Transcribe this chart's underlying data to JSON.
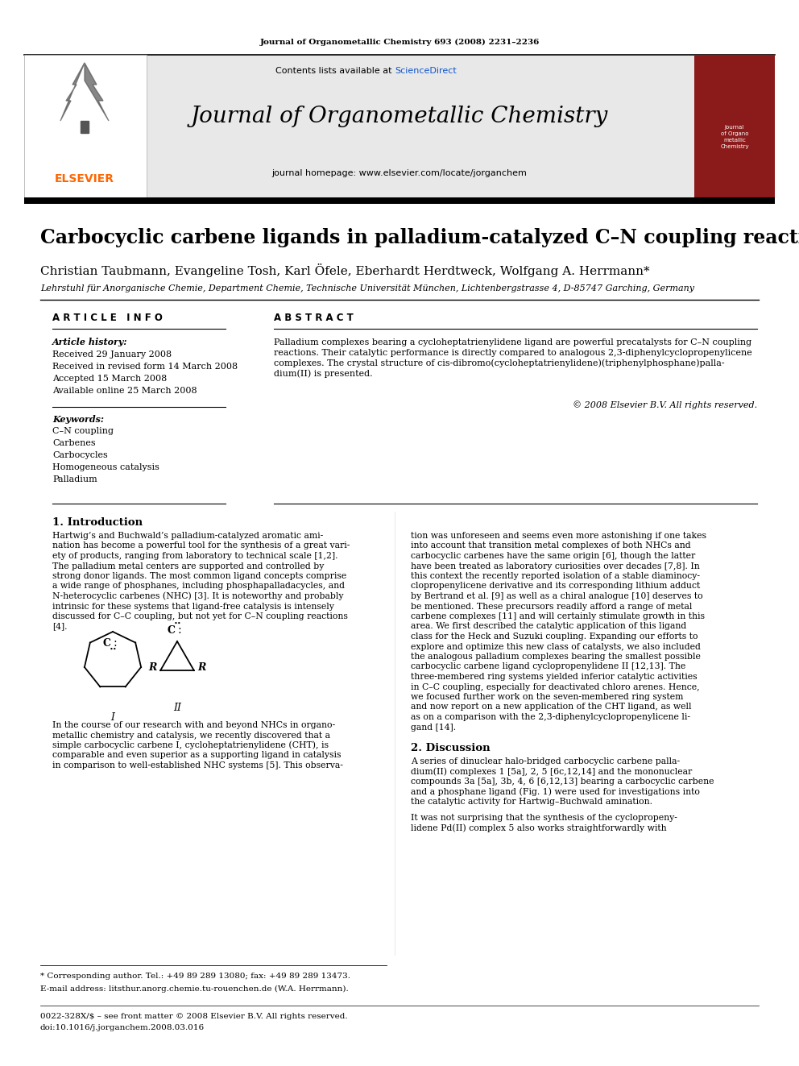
{
  "fig_width": 9.92,
  "fig_height": 13.23,
  "bg_color": "#ffffff",
  "journal_ref": "Journal of Organometallic Chemistry 693 (2008) 2231–2236",
  "header_bg": "#e8e8e8",
  "header_title": "Journal of Organometallic Chemistry",
  "header_contents": "Contents lists available at",
  "sciencedirect": "ScienceDirect",
  "sciencedirect_color": "#1155cc",
  "homepage": "journal homepage: www.elsevier.com/locate/jorganchem",
  "elsevier_color": "#FF6600",
  "elsevier_text": "ELSEVIER",
  "article_title": "Carbocyclic carbene ligands in palladium-catalyzed C–N coupling reactions",
  "authors": "Christian Taubmann, Evangeline Tosh, Karl Öfele, Eberhardt Herdtweck, Wolfgang A. Herrmann*",
  "affiliation": "Lehrstuhl für Anorganische Chemie, Department Chemie, Technische Universität München, Lichtenbergstrasse 4, D-85747 Garching, Germany",
  "article_info_header": "A R T I C L E   I N F O",
  "abstract_header": "A B S T R A C T",
  "article_history_label": "Article history:",
  "received": "Received 29 January 2008",
  "received_revised": "Received in revised form 14 March 2008",
  "accepted": "Accepted 15 March 2008",
  "available": "Available online 25 March 2008",
  "keywords_label": "Keywords:",
  "keywords": [
    "C–N coupling",
    "Carbenes",
    "Carbocycles",
    "Homogeneous catalysis",
    "Palladium"
  ],
  "abstract_lines": [
    "Palladium complexes bearing a cycloheptatrienylidene ligand are powerful precatalysts for C–N coupling",
    "reactions. Their catalytic performance is directly compared to analogous 2,3-diphenylcyclopropenylicene",
    "complexes. The crystal structure of cis-dibromo(cycloheptatrienylidene)(triphenylphosphane)palla-",
    "dium(II) is presented."
  ],
  "copyright": "© 2008 Elsevier B.V. All rights reserved.",
  "intro_title": "1. Introduction",
  "intro_lines_left": [
    "Hartwig’s and Buchwald’s palladium-catalyzed aromatic ami-",
    "nation has become a powerful tool for the synthesis of a great vari-",
    "ety of products, ranging from laboratory to technical scale [1,2].",
    "The palladium metal centers are supported and controlled by",
    "strong donor ligands. The most common ligand concepts comprise",
    "a wide range of phosphanes, including phosphapalladacycles, and",
    "N-heterocyclic carbenes (NHC) [3]. It is noteworthy and probably",
    "intrinsic for these systems that ligand-free catalysis is intensely",
    "discussed for C–C coupling, but not yet for C–N coupling reactions",
    "[4]."
  ],
  "intro_lines_left2": [
    "In the course of our research with and beyond NHCs in organo-",
    "metallic chemistry and catalysis, we recently discovered that a",
    "simple carbocyclic carbene I, cycloheptatrienylidene (CHT), is",
    "comparable and even superior as a supporting ligand in catalysis",
    "in comparison to well-established NHC systems [5]. This observa-"
  ],
  "intro_lines_right": [
    "tion was unforeseen and seems even more astonishing if one takes",
    "into account that transition metal complexes of both NHCs and",
    "carbocyclic carbenes have the same origin [6], though the latter",
    "have been treated as laboratory curiosities over decades [7,8]. In",
    "this context the recently reported isolation of a stable diaminocy-",
    "clopropenylicene derivative and its corresponding lithium adduct",
    "by Bertrand et al. [9] as well as a chiral analogue [10] deserves to",
    "be mentioned. These precursors readily afford a range of metal",
    "carbene complexes [11] and will certainly stimulate growth in this",
    "area. We first described the catalytic application of this ligand",
    "class for the Heck and Suzuki coupling. Expanding our efforts to",
    "explore and optimize this new class of catalysts, we also included",
    "the analogous palladium complexes bearing the smallest possible",
    "carbocyclic carbene ligand cyclopropenylidene II [12,13]. The",
    "three-membered ring systems yielded inferior catalytic activities",
    "in C–C coupling, especially for deactivated chloro arenes. Hence,",
    "we focused further work on the seven-membered ring system",
    "and now report on a new application of the CHT ligand, as well",
    "as on a comparison with the 2,3-diphenylcyclopropenylicene li-",
    "gand [14]."
  ],
  "discussion_title": "2. Discussion",
  "discussion_lines": [
    "A series of dinuclear halo-bridged carbocyclic carbene palla-",
    "dium(II) complexes 1 [5a], 2, 5 [6c,12,14] and the mononuclear",
    "compounds 3a [5a], 3b, 4, 6 [6,12,13] bearing a carbocyclic carbene",
    "and a phosphane ligand (Fig. 1) were used for investigations into",
    "the catalytic activity for Hartwig–Buchwald amination."
  ],
  "discussion_lines2": [
    "It was not surprising that the synthesis of the cyclopropeny-",
    "lidene Pd(II) complex 5 also works straightforwardly with"
  ],
  "footnote_star": "* Corresponding author. Tel.: +49 89 289 13080; fax: +49 89 289 13473.",
  "footnote_email": "E-mail address: litsthur.anorg.chemie.tu-rouenchen.de (W.A. Herrmann).",
  "footer_issn": "0022-328X/$ – see front matter © 2008 Elsevier B.V. All rights reserved.",
  "footer_doi": "doi:10.1016/j.jorganchem.2008.03.016"
}
